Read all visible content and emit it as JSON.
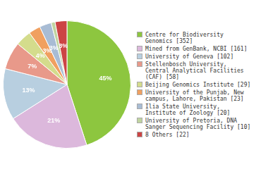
{
  "chart_data": {
    "type": "pie",
    "categories": [
      "Centre for Biodiversity\nGenomics [352]",
      "Mined from GenBank, NCBI [161]",
      "University of Geneva [102]",
      "Stellenbosch University,\nCentral Analytical Facilities\n(CAF)  [58]",
      "Beijing Genomics Institute [29]",
      "University of the Punjab, New\ncampus, Lahore, Pakistan [23]",
      "Ilia State University,\nInstitute of Zoology [20]",
      "University of Pretoria, DNA\nSanger Sequencing Facility [10]",
      "8 Others [22]"
    ],
    "values": [
      45,
      21,
      13,
      7,
      4,
      3,
      3,
      1,
      3
    ],
    "value_labels": [
      "45%",
      "21%",
      "13%",
      "7%",
      "4%",
      "3%",
      "3%",
      null,
      "3%"
    ],
    "colors": [
      "#8dc63f",
      "#dcb8dc",
      "#b8cfe0",
      "#e8998a",
      "#d4dc8c",
      "#f0a060",
      "#a8bcd4",
      "#c0d4a0",
      "#cc4444"
    ],
    "data_labels": true,
    "legend": "right"
  }
}
